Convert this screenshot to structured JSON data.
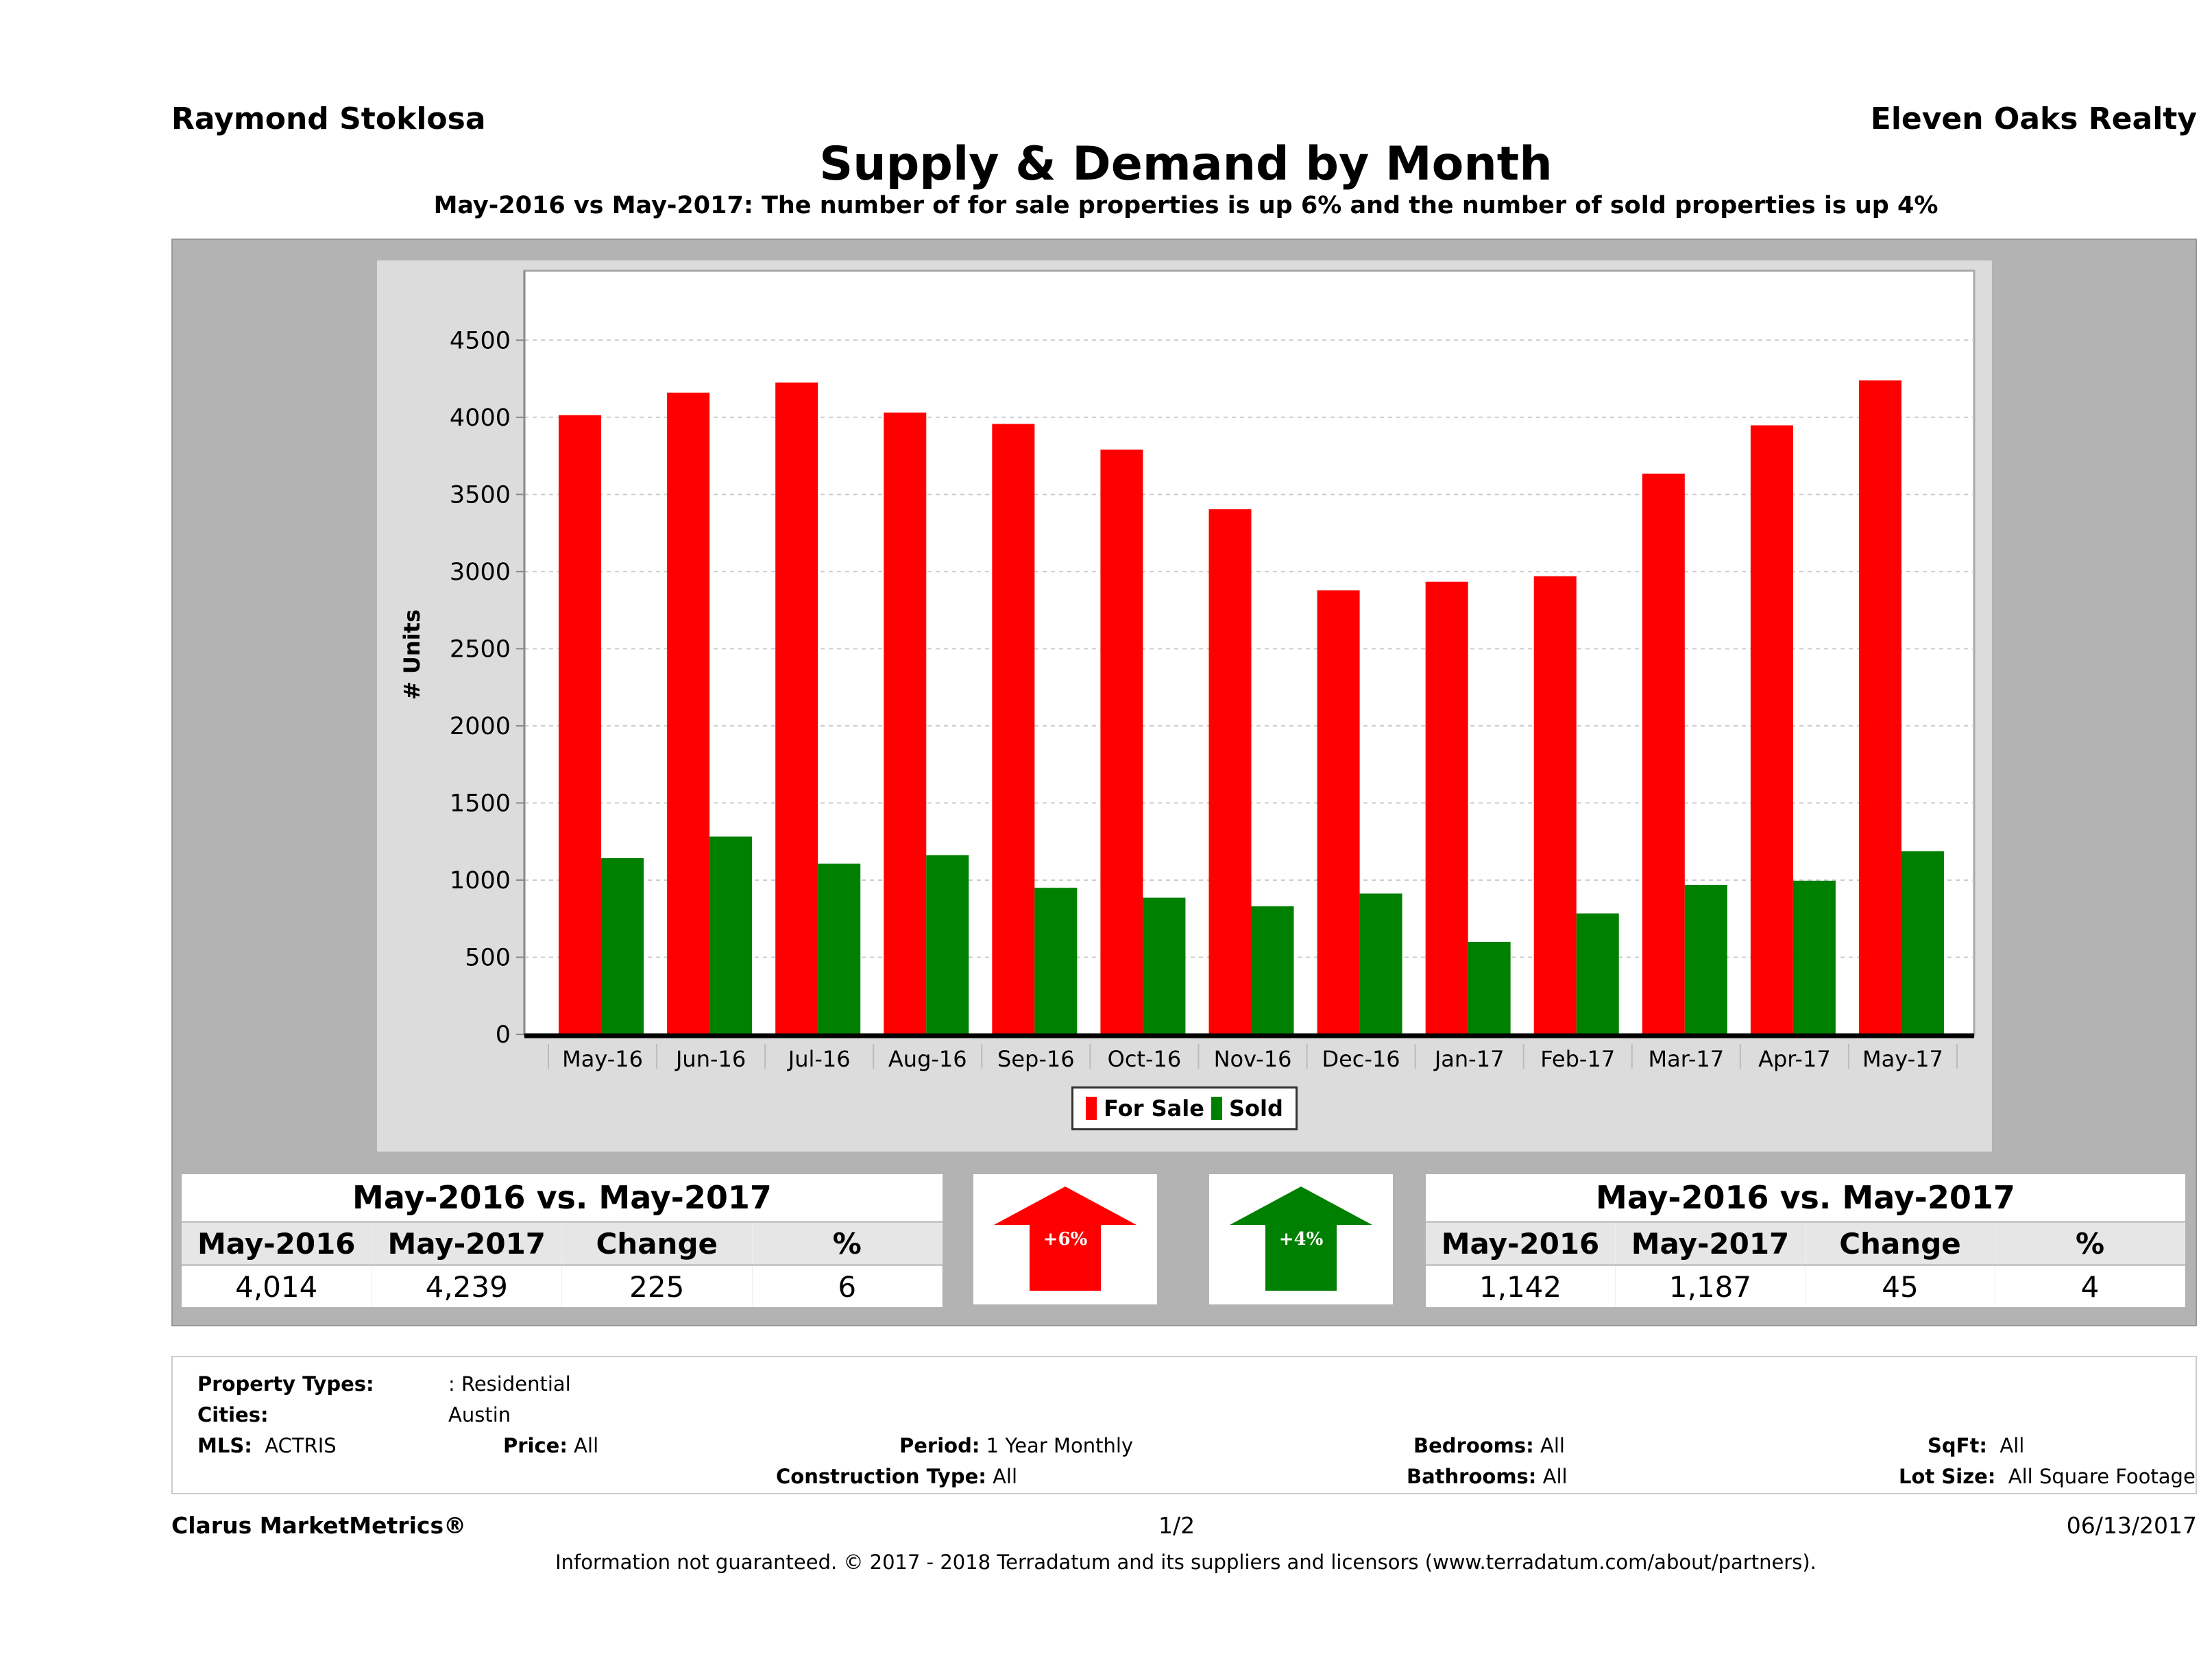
{
  "header": {
    "agent_name": "Raymond Stoklosa",
    "company": "Eleven Oaks Realty",
    "title": "Supply & Demand by Month",
    "subtitle": "May-2016 vs May-2017: The number of for sale properties is up 6% and the number of sold properties is up 4%"
  },
  "chart_data": {
    "type": "bar",
    "title": "Supply & Demand by Month",
    "xlabel": "",
    "ylabel": "# Units",
    "ylim": [
      0,
      4950
    ],
    "yticks": [
      0,
      500,
      1000,
      1500,
      2000,
      2500,
      3000,
      3500,
      4000,
      4500
    ],
    "grid": true,
    "legend_position": "bottom-center",
    "categories": [
      "May-16",
      "Jun-16",
      "Jul-16",
      "Aug-16",
      "Sep-16",
      "Oct-16",
      "Nov-16",
      "Dec-16",
      "Jan-17",
      "Feb-17",
      "Mar-17",
      "Apr-17",
      "May-17"
    ],
    "series": [
      {
        "name": "For Sale",
        "color": "#ff0000",
        "values": [
          4014,
          4160,
          4225,
          4031,
          3957,
          3791,
          3404,
          2878,
          2934,
          2970,
          3635,
          3948,
          4239
        ]
      },
      {
        "name": "Sold",
        "color": "#008000",
        "values": [
          1142,
          1282,
          1107,
          1162,
          950,
          886,
          830,
          913,
          600,
          784,
          969,
          996,
          1187
        ]
      }
    ]
  },
  "summary_for_sale": {
    "title": "May-2016 vs. May-2017",
    "headers": [
      "May-2016",
      "May-2017",
      "Change",
      "%"
    ],
    "values": [
      "4,014",
      "4,239",
      "225",
      "6"
    ],
    "arrow_label": "+6%",
    "arrow_color": "#ff0000"
  },
  "summary_sold": {
    "title": "May-2016 vs. May-2017",
    "headers": [
      "May-2016",
      "May-2017",
      "Change",
      "%"
    ],
    "values": [
      "1,142",
      "1,187",
      "45",
      "4"
    ],
    "arrow_label": "+4%",
    "arrow_color": "#008000"
  },
  "filters": {
    "property_types_label": "Property Types:",
    "property_types_value": ": Residential",
    "cities_label": "Cities:",
    "cities_value": "Austin",
    "mls_label": "MLS:",
    "mls_value": "ACTRIS",
    "price_label": "Price:",
    "price_value": "All",
    "period_label": "Period:",
    "period_value": "1 Year Monthly",
    "construction_label": "Construction Type:",
    "construction_value": "All",
    "bedrooms_label": "Bedrooms:",
    "bedrooms_value": "All",
    "bathrooms_label": "Bathrooms:",
    "bathrooms_value": "All",
    "sqft_label": "SqFt:",
    "sqft_value": "All",
    "lotsize_label": "Lot Size:",
    "lotsize_value": "All Square Footage"
  },
  "footer": {
    "brand": "Clarus MarketMetrics®",
    "page": "1/2",
    "date": "06/13/2017",
    "disclaimer": "Information not guaranteed. © 2017 - 2018 Terradatum and its suppliers and licensors (www.terradatum.com/about/partners)."
  }
}
